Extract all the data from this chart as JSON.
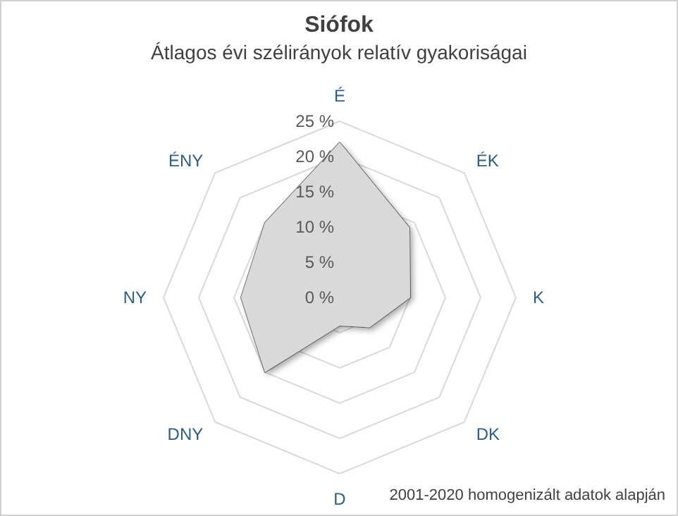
{
  "chart_data": {
    "type": "radar",
    "title": "Siófok",
    "subtitle": "Átlagos évi szélirányok relatív gyakoriságai",
    "categories": [
      "É",
      "ÉK",
      "K",
      "DK",
      "D",
      "DNY",
      "NY",
      "ÉNY"
    ],
    "series": [
      {
        "color": "#d9d9d9",
        "values": [
          22,
          14,
          10,
          6,
          4,
          15,
          14,
          15
        ]
      }
    ],
    "ylim": [
      0,
      25
    ],
    "yticks": [
      {
        "value": 0,
        "label": "0 %"
      },
      {
        "value": 5,
        "label": "5 %"
      },
      {
        "value": 10,
        "label": "10 %"
      },
      {
        "value": 15,
        "label": "15 %"
      },
      {
        "value": 20,
        "label": "20 %"
      },
      {
        "value": 25,
        "label": "25 %"
      }
    ],
    "annotations": [
      "2001-2020 homogenizált adatok alapján"
    ]
  }
}
